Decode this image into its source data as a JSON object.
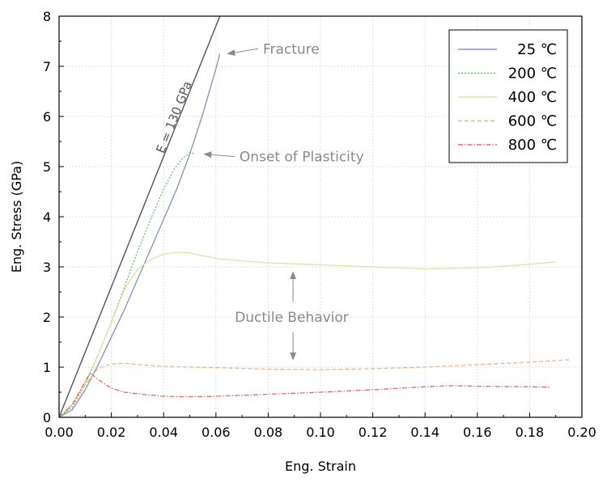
{
  "chart_data": {
    "type": "line",
    "xlabel": "Eng. Strain",
    "ylabel": "Eng. Stress (GPa)",
    "xlim": [
      0,
      0.2
    ],
    "ylim": [
      0,
      8
    ],
    "x_ticks": [
      "0.00",
      "0.02",
      "0.04",
      "0.06",
      "0.08",
      "0.10",
      "0.12",
      "0.14",
      "0.16",
      "0.18",
      "0.20"
    ],
    "y_ticks": [
      "0",
      "1",
      "2",
      "3",
      "4",
      "5",
      "6",
      "7",
      "8"
    ],
    "grid": true,
    "legend_position": "top-right",
    "series": [
      {
        "name": "25 ℃",
        "color": "#7f93b8",
        "dash": "solid",
        "x": [
          0,
          0.005,
          0.01,
          0.015,
          0.02,
          0.025,
          0.03,
          0.035,
          0.04,
          0.045,
          0.05,
          0.055,
          0.06,
          0.0615
        ],
        "y": [
          0,
          0.15,
          0.55,
          1.05,
          1.6,
          2.15,
          2.75,
          3.35,
          3.95,
          4.55,
          5.25,
          6.05,
          6.95,
          7.25
        ]
      },
      {
        "name": "200 ℃",
        "color": "#5fc46b",
        "dash": "dotted",
        "x": [
          0,
          0.005,
          0.01,
          0.015,
          0.02,
          0.025,
          0.03,
          0.035,
          0.04,
          0.044,
          0.047,
          0.05,
          0.052
        ],
        "y": [
          0,
          0.2,
          0.65,
          1.25,
          1.9,
          2.6,
          3.3,
          3.95,
          4.55,
          4.95,
          5.15,
          5.28,
          5.25
        ]
      },
      {
        "name": "400 ℃",
        "color": "#e2e0a8",
        "dash": "solid",
        "x": [
          0,
          0.005,
          0.01,
          0.015,
          0.02,
          0.025,
          0.03,
          0.035,
          0.04,
          0.045,
          0.05,
          0.055,
          0.06,
          0.07,
          0.08,
          0.1,
          0.12,
          0.14,
          0.16,
          0.18,
          0.19
        ],
        "y": [
          0,
          0.25,
          0.7,
          1.25,
          1.9,
          2.55,
          2.95,
          3.15,
          3.25,
          3.29,
          3.28,
          3.22,
          3.17,
          3.12,
          3.08,
          3.04,
          3.0,
          2.96,
          2.98,
          3.05,
          3.1
        ]
      },
      {
        "name": "600 ℃",
        "color": "#f0b48a",
        "dash": "dashed",
        "x": [
          0,
          0.005,
          0.01,
          0.015,
          0.02,
          0.025,
          0.03,
          0.04,
          0.05,
          0.06,
          0.08,
          0.1,
          0.12,
          0.14,
          0.16,
          0.18,
          0.196
        ],
        "y": [
          0,
          0.25,
          0.65,
          0.98,
          1.06,
          1.08,
          1.05,
          1.02,
          1.0,
          0.99,
          0.96,
          0.95,
          0.97,
          1.0,
          1.05,
          1.1,
          1.15
        ]
      },
      {
        "name": "800 ℃",
        "color": "#e86b6b",
        "dash": "dashdot",
        "x": [
          0,
          0.005,
          0.01,
          0.012,
          0.015,
          0.02,
          0.025,
          0.03,
          0.04,
          0.05,
          0.06,
          0.08,
          0.1,
          0.12,
          0.14,
          0.15,
          0.16,
          0.18,
          0.188
        ],
        "y": [
          0,
          0.25,
          0.72,
          0.88,
          0.75,
          0.58,
          0.5,
          0.47,
          0.42,
          0.41,
          0.42,
          0.46,
          0.5,
          0.55,
          0.61,
          0.63,
          0.62,
          0.61,
          0.6
        ]
      }
    ],
    "reference_line": {
      "label": "E = 130 GPa",
      "color": "#555555",
      "x": [
        0,
        0.0615
      ],
      "y": [
        0,
        8
      ]
    },
    "annotations": [
      {
        "text": "Fracture",
        "text_at": [
          0.078,
          7.35
        ],
        "arrow_to": [
          0.0645,
          7.25
        ]
      },
      {
        "text": "Onset of Plasticity",
        "text_at": [
          0.069,
          5.2
        ],
        "arrow_to": [
          0.0555,
          5.25
        ]
      },
      {
        "text": "Ductile Behavior",
        "text_at": [
          0.089,
          2.0
        ],
        "arrow_up": [
          0.0895,
          2.9,
          2.3
        ],
        "arrow_down": [
          0.0895,
          1.15,
          1.7
        ]
      }
    ]
  }
}
